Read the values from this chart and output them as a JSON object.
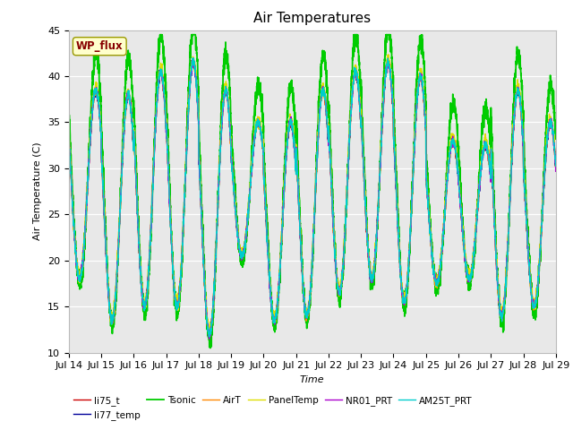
{
  "title": "Air Temperatures",
  "xlabel": "Time",
  "ylabel": "Air Temperature (C)",
  "ylim": [
    10,
    45
  ],
  "x_tick_labels": [
    "Jul 14",
    "Jul 15",
    "Jul 16",
    "Jul 17",
    "Jul 18",
    "Jul 19",
    "Jul 20",
    "Jul 21",
    "Jul 22",
    "Jul 23",
    "Jul 24",
    "Jul 25",
    "Jul 26",
    "Jul 27",
    "Jul 28",
    "Jul 29"
  ],
  "series_colors": {
    "li75_t": "#cc0000",
    "li77_temp": "#000099",
    "Tsonic": "#00cc00",
    "AirT": "#ff8800",
    "PanelTemp": "#dddd00",
    "NR01_PRT": "#aa00cc",
    "AM25T_PRT": "#00cccc"
  },
  "legend_order": [
    "li75_t",
    "li77_temp",
    "Tsonic",
    "AirT",
    "PanelTemp",
    "NR01_PRT",
    "AM25T_PRT"
  ],
  "wp_flux_label": "WP_flux",
  "wp_flux_label_color": "#880000",
  "wp_flux_box_facecolor": "#ffffcc",
  "wp_flux_box_edgecolor": "#999900",
  "plot_bg_color": "#e8e8e8",
  "title_fontsize": 11,
  "axis_fontsize": 8,
  "tick_fontsize": 8,
  "lw": 1.0,
  "lw_tsonic": 1.3
}
